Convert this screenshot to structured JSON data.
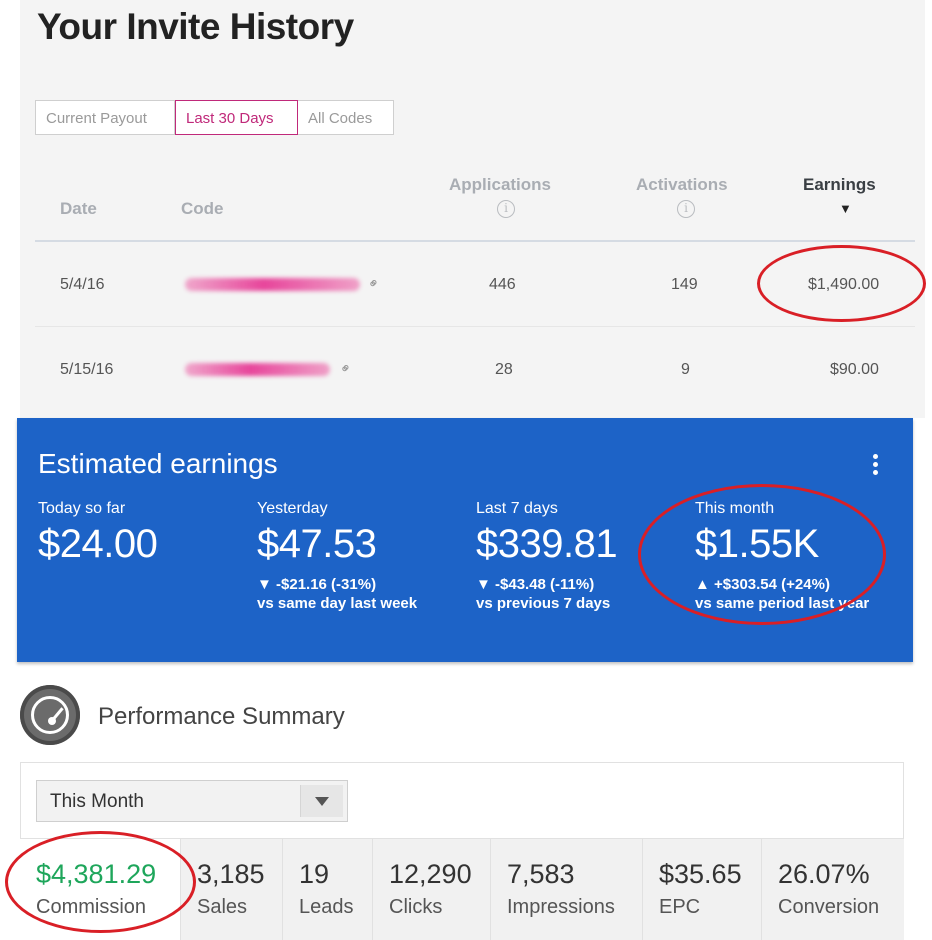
{
  "invite": {
    "title": "Your Invite History",
    "tabs": [
      "Current Payout",
      "Last 30 Days",
      "All Codes"
    ],
    "active_tab": "Last 30 Days",
    "columns": {
      "date": "Date",
      "code": "Code",
      "applications": "Applications",
      "activations": "Activations",
      "earnings": "Earnings"
    },
    "rows": [
      {
        "date": "5/4/16",
        "applications": "446",
        "activations": "149",
        "earnings": "$1,490.00"
      },
      {
        "date": "5/15/16",
        "applications": "28",
        "activations": "9",
        "earnings": "$90.00"
      }
    ],
    "info_icon": "i",
    "sort_icon": "▼",
    "link_icon": "link-icon"
  },
  "earnings_card": {
    "title": "Estimated earnings",
    "metrics": [
      {
        "label": "Today so far",
        "value": "$24.00",
        "change": "",
        "compare": ""
      },
      {
        "label": "Yesterday",
        "value": "$47.53",
        "change": "▼ -$21.16 (-31%)",
        "compare": "vs same day last week"
      },
      {
        "label": "Last 7 days",
        "value": "$339.81",
        "change": "▼ -$43.48 (-11%)",
        "compare": "vs previous 7 days"
      },
      {
        "label": "This month",
        "value": "$1.55K",
        "change": "▲ +$303.54 (+24%)",
        "compare": "vs same period last year"
      }
    ],
    "background_color": "#1d63c7"
  },
  "performance": {
    "title": "Performance Summary",
    "period": "This Month",
    "stats": [
      {
        "value": "$4,381.29",
        "label": "Commission"
      },
      {
        "value": "3,185",
        "label": "Sales"
      },
      {
        "value": "19",
        "label": "Leads"
      },
      {
        "value": "12,290",
        "label": "Clicks"
      },
      {
        "value": "7,583",
        "label": "Impressions"
      },
      {
        "value": "$35.65",
        "label": "EPC"
      },
      {
        "value": "26.07%",
        "label": "Conversion"
      }
    ],
    "highlight_color": "#1ea65b"
  },
  "annotation_color": "#d91f26"
}
